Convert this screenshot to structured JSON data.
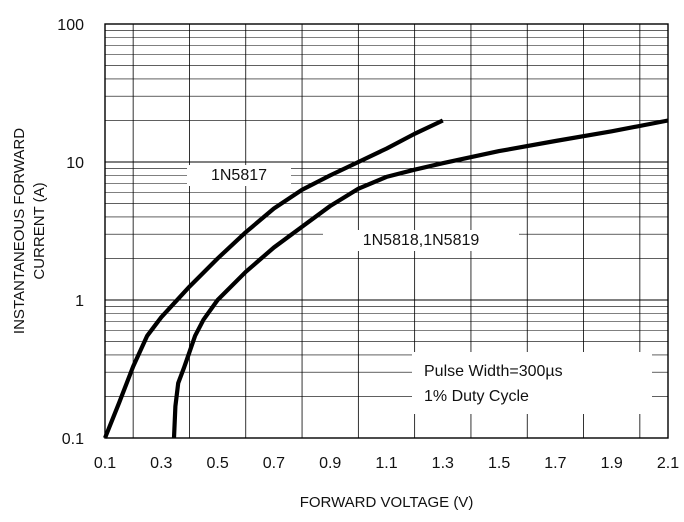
{
  "chart_data": {
    "type": "line",
    "title": "",
    "xlabel": "FORWARD VOLTAGE (V)",
    "ylabel_lines": [
      "INSTANTANEOUS FORWARD",
      "CURRENT (A)"
    ],
    "xlim": [
      0.1,
      2.1
    ],
    "ylim": [
      0.1,
      100
    ],
    "yscale": "log",
    "grid": true,
    "x_ticks": [
      "0.1",
      "0.3",
      "0.5",
      "0.7",
      "0.9",
      "1.1",
      "1.3",
      "1.5",
      "1.7",
      "1.9",
      "2.1"
    ],
    "y_ticks": [
      "0.1",
      "1",
      "10",
      "100"
    ],
    "series": [
      {
        "name": "1N5817",
        "x": [
          0.1,
          0.15,
          0.2,
          0.25,
          0.3,
          0.4,
          0.5,
          0.6,
          0.7,
          0.8,
          0.9,
          1.0,
          1.1,
          1.2,
          1.3
        ],
        "y": [
          0.1,
          0.18,
          0.33,
          0.55,
          0.75,
          1.25,
          2.0,
          3.1,
          4.6,
          6.3,
          8.0,
          10.0,
          12.5,
          16.0,
          20.0
        ]
      },
      {
        "name": "1N5818,1N5819",
        "x": [
          0.345,
          0.35,
          0.36,
          0.38,
          0.4,
          0.42,
          0.45,
          0.5,
          0.6,
          0.7,
          0.8,
          0.9,
          1.0,
          1.1,
          1.2,
          1.3,
          1.5,
          1.7,
          1.9,
          2.1
        ],
        "y": [
          0.1,
          0.17,
          0.25,
          0.32,
          0.42,
          0.55,
          0.72,
          1.0,
          1.6,
          2.4,
          3.4,
          4.8,
          6.4,
          7.8,
          8.8,
          9.8,
          12.0,
          14.2,
          16.7,
          20.0
        ]
      }
    ],
    "annotations": [
      "Pulse Width=300µs",
      "1% Duty Cycle"
    ]
  }
}
